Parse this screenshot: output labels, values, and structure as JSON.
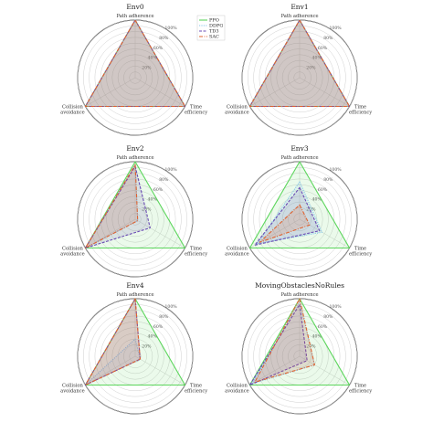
{
  "colors": {
    "PPO": "#5cd65c",
    "DDPG": "#86c5ea",
    "TD3": "#6a4bb3",
    "SAC": "#e0622f"
  },
  "chart_data": [
    {
      "type": "radar",
      "title": "Env0",
      "axes": [
        "Path adherence",
        "Time efficiency",
        "Collision avoidance"
      ],
      "tick_labels": [
        "20%",
        "40%",
        "60%",
        "80%",
        "100%"
      ],
      "series": [
        {
          "name": "PPO",
          "values": [
            100,
            100,
            100
          ]
        },
        {
          "name": "DDPG",
          "values": [
            100,
            100,
            100
          ]
        },
        {
          "name": "TD3",
          "values": [
            100,
            100,
            100
          ]
        },
        {
          "name": "SAC",
          "values": [
            100,
            100,
            100
          ]
        }
      ]
    },
    {
      "type": "radar",
      "title": "Env1",
      "axes": [
        "Path adherence",
        "Time efficiency",
        "Collision avoidance"
      ],
      "tick_labels": [
        "20%",
        "40%",
        "60%",
        "80%",
        "100%"
      ],
      "series": [
        {
          "name": "PPO",
          "values": [
            100,
            100,
            100
          ]
        },
        {
          "name": "DDPG",
          "values": [
            100,
            100,
            100
          ]
        },
        {
          "name": "TD3",
          "values": [
            100,
            100,
            100
          ]
        },
        {
          "name": "SAC",
          "values": [
            100,
            100,
            100
          ]
        }
      ]
    },
    {
      "type": "radar",
      "title": "Env2",
      "axes": [
        "Path adherence",
        "Time efficiency",
        "Collision avoidance"
      ],
      "tick_labels": [
        "20%",
        "40%",
        "60%",
        "80%",
        "100%"
      ],
      "series": [
        {
          "name": "PPO",
          "values": [
            100,
            100,
            100
          ]
        },
        {
          "name": "DDPG",
          "values": [
            95,
            5,
            100
          ]
        },
        {
          "name": "TD3",
          "values": [
            92,
            30,
            100
          ]
        },
        {
          "name": "SAC",
          "values": [
            95,
            5,
            100
          ]
        }
      ]
    },
    {
      "type": "radar",
      "title": "Env3",
      "axes": [
        "Path adherence",
        "Time efficiency",
        "Collision avoidance"
      ],
      "tick_labels": [
        "20%",
        "40%",
        "60%",
        "80%",
        "100%"
      ],
      "series": [
        {
          "name": "PPO",
          "values": [
            100,
            100,
            100
          ]
        },
        {
          "name": "DDPG",
          "values": [
            65,
            45,
            85
          ]
        },
        {
          "name": "TD3",
          "values": [
            55,
            40,
            90
          ]
        },
        {
          "name": "SAC",
          "values": [
            25,
            20,
            80
          ]
        }
      ]
    },
    {
      "type": "radar",
      "title": "Env4",
      "axes": [
        "Path adherence",
        "Time efficiency",
        "Collision avoidance"
      ],
      "tick_labels": [
        "20%",
        "40%",
        "60%",
        "80%",
        "100%"
      ],
      "series": [
        {
          "name": "PPO",
          "values": [
            100,
            100,
            100
          ]
        },
        {
          "name": "DDPG",
          "values": [
            30,
            10,
            100
          ]
        },
        {
          "name": "TD3",
          "values": [
            100,
            10,
            100
          ]
        },
        {
          "name": "SAC",
          "values": [
            100,
            10,
            100
          ]
        }
      ]
    },
    {
      "type": "radar",
      "title": "MovingObstaclesNoRules",
      "axes": [
        "Path adherence",
        "Time efficiency",
        "Collision avoidance"
      ],
      "tick_labels": [
        "20%",
        "40%",
        "60%",
        "80%",
        "100%"
      ],
      "series": [
        {
          "name": "PPO",
          "values": [
            100,
            100,
            100
          ]
        },
        {
          "name": "DDPG",
          "values": [
            95,
            30,
            95
          ]
        },
        {
          "name": "TD3",
          "values": [
            90,
            15,
            100
          ]
        },
        {
          "name": "SAC",
          "values": [
            100,
            30,
            90
          ]
        }
      ]
    }
  ]
}
